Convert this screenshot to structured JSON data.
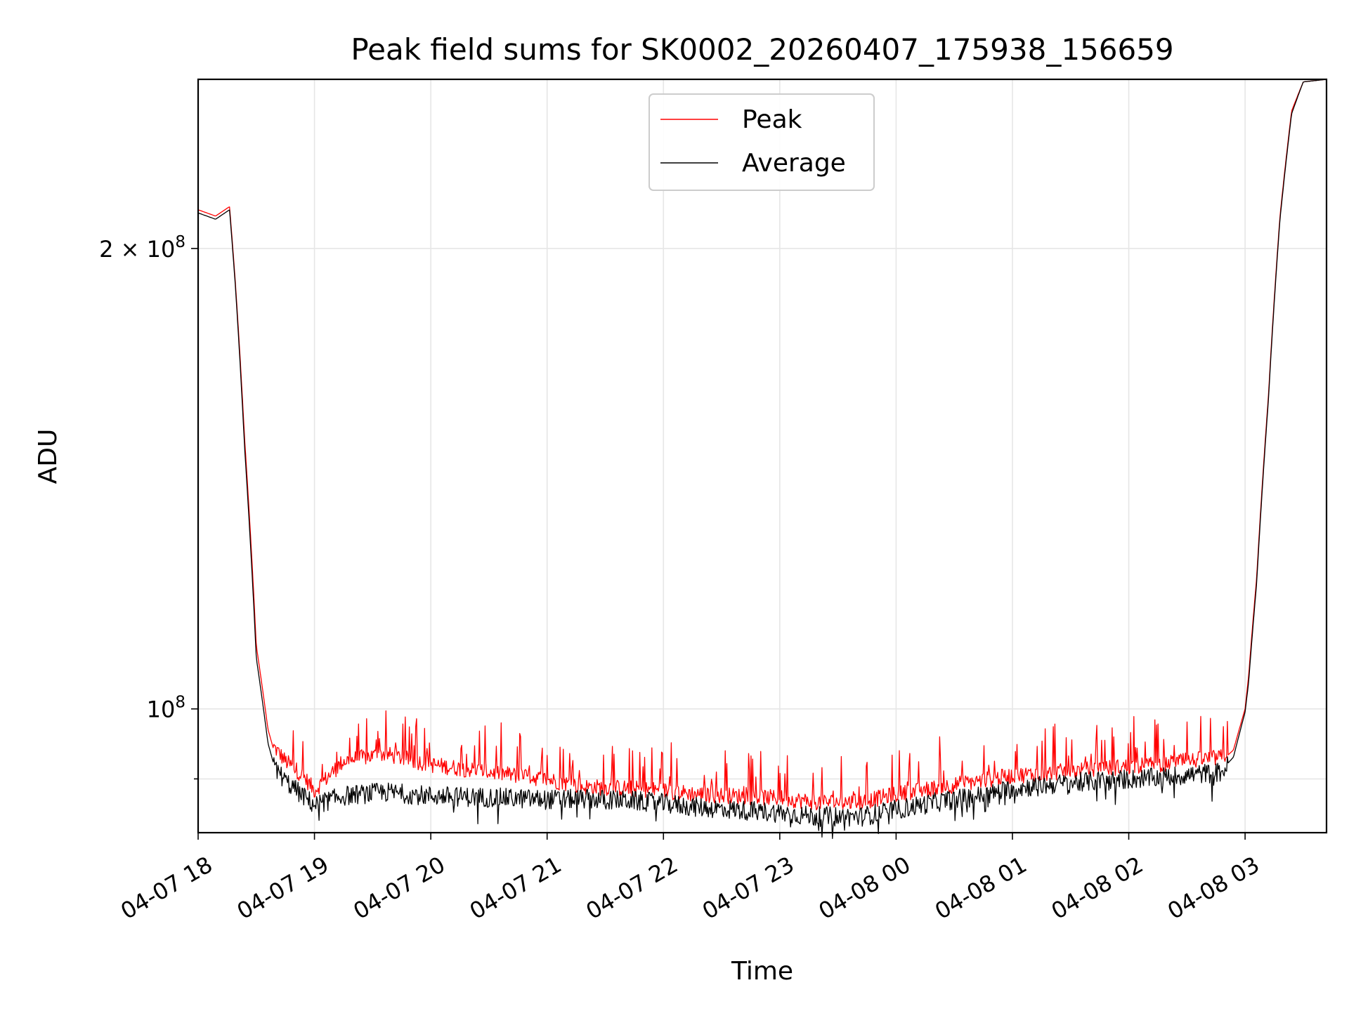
{
  "chart_data": {
    "type": "line",
    "title": "Peak field sums for SK0002_20260407_175938_156659",
    "xlabel": "Time",
    "ylabel": "ADU",
    "yscale": "log",
    "xlim": [
      18.0,
      27.7
    ],
    "ylim": [
      83000000,
      258000000
    ],
    "grid": true,
    "legend_position": "upper-center",
    "x_tick_values": [
      18,
      19,
      20,
      21,
      22,
      23,
      24,
      25,
      26,
      27
    ],
    "x_tick_labels": [
      "04-07 18",
      "04-07 19",
      "04-07 20",
      "04-07 21",
      "04-07 22",
      "04-07 23",
      "04-08 00",
      "04-08 01",
      "04-08 02",
      "04-08 03"
    ],
    "y_major_ticks": [
      {
        "value": 100000000,
        "mantissa": "",
        "base": "10",
        "exp": "8"
      },
      {
        "value": 200000000,
        "mantissa": "2 × ",
        "base": "10",
        "exp": "8"
      }
    ],
    "y_minor_ticks": [
      90000000
    ],
    "x_unit": "hours since 2026-04-07 00:00",
    "series": [
      {
        "name": "Peak",
        "color": "#ff0000",
        "x": [
          18.0,
          18.15,
          18.27,
          18.32,
          18.4,
          18.5,
          18.6,
          18.65,
          18.75,
          18.9,
          19.0,
          19.25,
          19.6,
          20.0,
          20.5,
          21.0,
          21.3,
          21.7,
          22.0,
          22.3,
          22.6,
          23.0,
          23.3,
          23.7,
          24.0,
          24.4,
          24.8,
          25.0,
          25.4,
          25.8,
          26.2,
          26.5,
          26.8,
          26.9,
          27.0,
          27.03,
          27.1,
          27.2,
          27.3,
          27.4,
          27.5,
          27.7
        ],
        "values": [
          212000000,
          210000000,
          213000000,
          190000000,
          150000000,
          110000000,
          97000000,
          94000000,
          92000000,
          90000000,
          88000000,
          92000000,
          93000000,
          91500000,
          90500000,
          89500000,
          88500000,
          88300000,
          88000000,
          87500000,
          87300000,
          87000000,
          86500000,
          86500000,
          87500000,
          88500000,
          89500000,
          90000000,
          90500000,
          91000000,
          91500000,
          92000000,
          92500000,
          94000000,
          100000000,
          105000000,
          122000000,
          160000000,
          210000000,
          246000000,
          257000000,
          258000000
        ]
      },
      {
        "name": "Average",
        "color": "#000000",
        "x": [
          18.0,
          18.15,
          18.27,
          18.32,
          18.4,
          18.5,
          18.6,
          18.65,
          18.75,
          18.9,
          19.0,
          19.25,
          19.6,
          20.0,
          20.5,
          21.0,
          21.3,
          21.7,
          22.0,
          22.3,
          22.6,
          23.0,
          23.3,
          23.7,
          24.0,
          24.4,
          24.8,
          25.0,
          25.4,
          25.8,
          26.2,
          26.5,
          26.8,
          26.9,
          27.0,
          27.03,
          27.1,
          27.2,
          27.3,
          27.4,
          27.5,
          27.7
        ],
        "values": [
          211000000,
          209000000,
          212000000,
          189000000,
          148000000,
          108000000,
          95000000,
          92000000,
          90000000,
          88000000,
          86800000,
          88000000,
          88500000,
          88000000,
          87800000,
          87500000,
          87600000,
          87400000,
          87000000,
          86500000,
          86200000,
          85800000,
          85300000,
          85300000,
          86200000,
          87300000,
          88200000,
          89000000,
          89600000,
          90100000,
          90400000,
          90800000,
          91200000,
          93000000,
          99500000,
          104000000,
          121000000,
          159000000,
          209000000,
          245000000,
          257000000,
          258000000
        ]
      }
    ]
  }
}
